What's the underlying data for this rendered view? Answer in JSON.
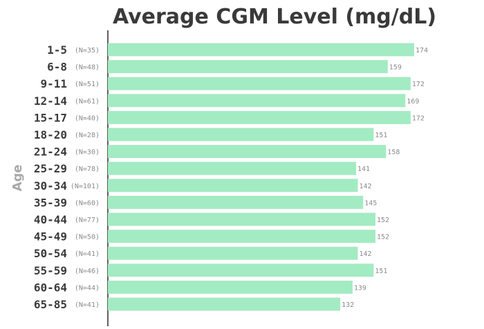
{
  "chart_data": {
    "type": "bar",
    "orientation": "horizontal",
    "title": "Average CGM Level (mg/dL)",
    "ylabel": "Age",
    "xlabel": "",
    "categories": [
      "1-5",
      "6-8",
      "9-11",
      "12-14",
      "15-17",
      "18-20",
      "21-24",
      "25-29",
      "30-34",
      "35-39",
      "40-44",
      "45-49",
      "50-54",
      "55-59",
      "60-64",
      "65-85"
    ],
    "counts": [
      "(N=35)",
      "(N=48)",
      "(N=51)",
      "(N=61)",
      "(N=40)",
      "(N=28)",
      "(N=30)",
      "(N=78)",
      "(N=101)",
      "(N=60)",
      "(N=77)",
      "(N=50)",
      "(N=41)",
      "(N=46)",
      "(N=44)",
      "(N=41)"
    ],
    "values": [
      174,
      159,
      172,
      169,
      172,
      151,
      158,
      141,
      142,
      145,
      152,
      152,
      142,
      151,
      139,
      132
    ],
    "bar_color": "#a3ebc2",
    "grid": false
  }
}
